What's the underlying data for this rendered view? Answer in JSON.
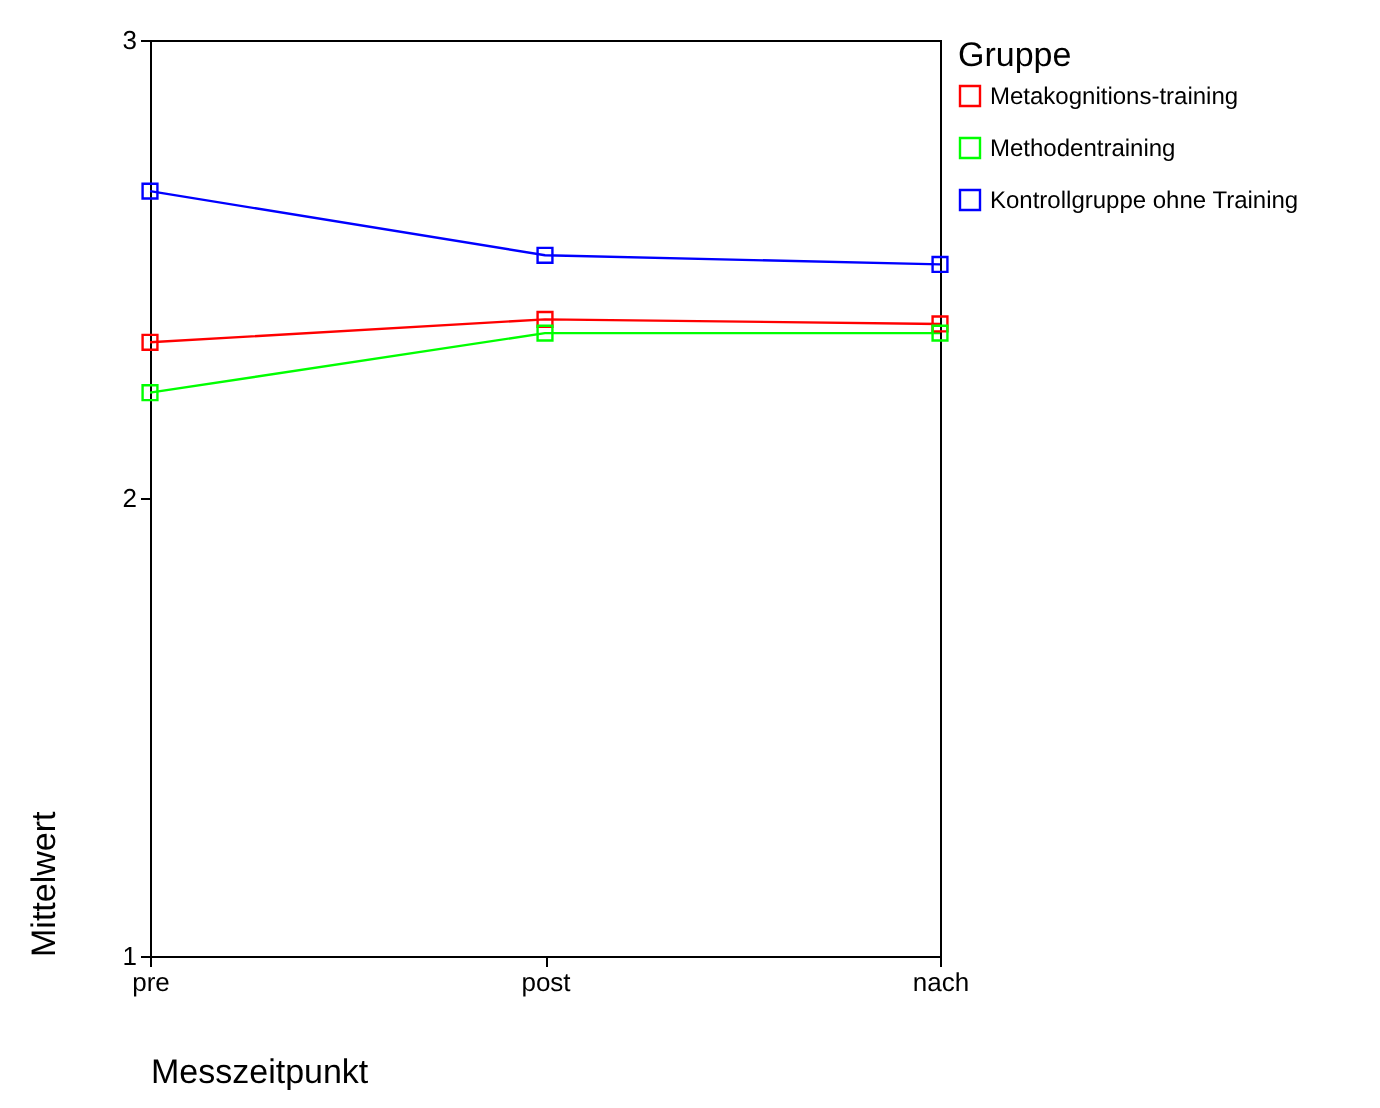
{
  "chart_data": {
    "type": "line",
    "xlabel": "Messzeitpunkt",
    "ylabel": "Mittelwert",
    "legend_title": "Gruppe",
    "categories": [
      "pre",
      "post",
      "nach"
    ],
    "series": [
      {
        "name": "Metakognitions-training",
        "color": "#ff0000",
        "values": [
          2.34,
          2.39,
          2.38
        ]
      },
      {
        "name": "Methodentraining",
        "color": "#00ff00",
        "values": [
          2.23,
          2.36,
          2.36
        ]
      },
      {
        "name": "Kontrollgruppe ohne Training",
        "color": "#0000ff",
        "values": [
          2.67,
          2.53,
          2.51
        ]
      }
    ],
    "ylim": [
      1,
      3
    ],
    "yticks": [
      1,
      2,
      3
    ],
    "grid": false,
    "legend": "right",
    "marker": "square",
    "line_style": "solid"
  }
}
